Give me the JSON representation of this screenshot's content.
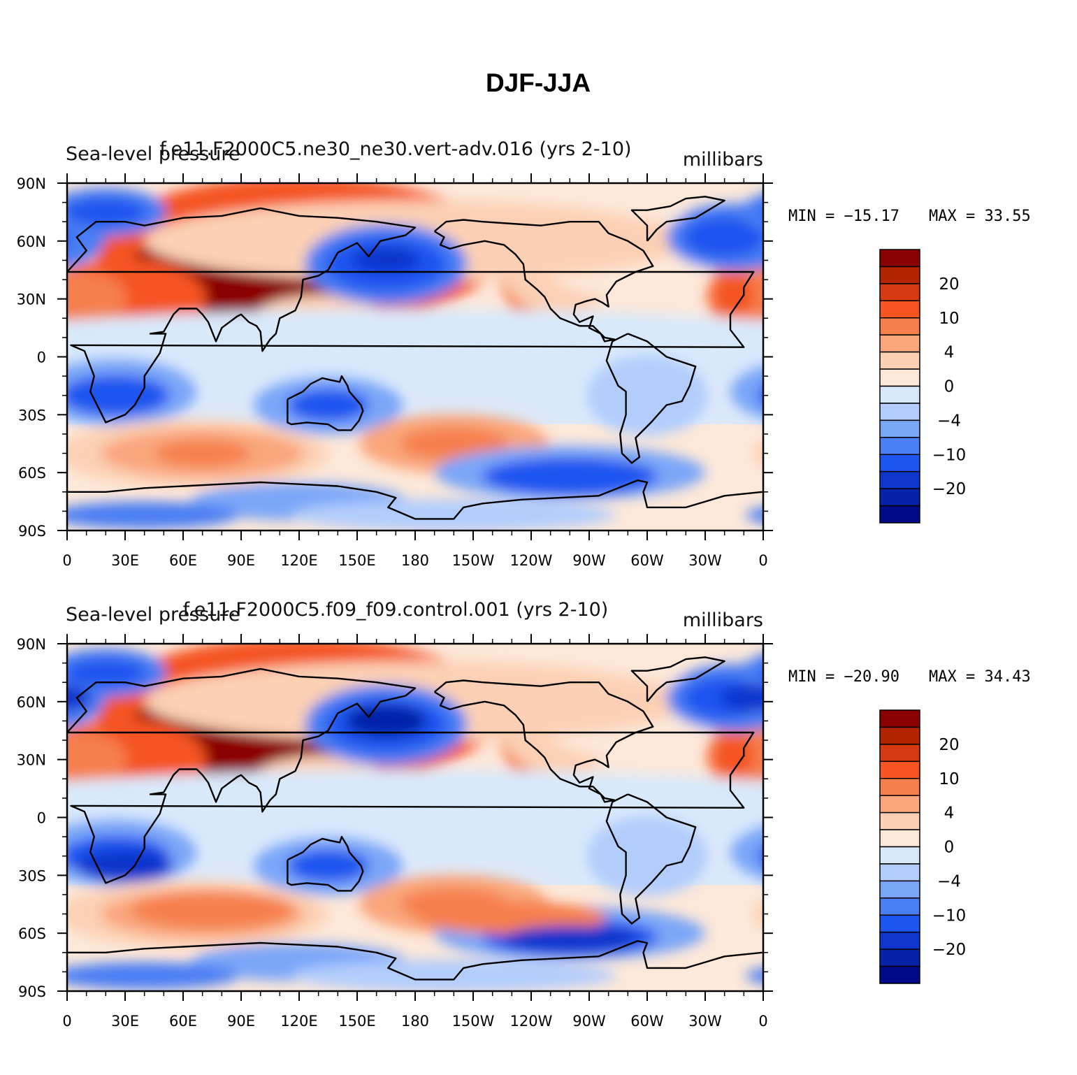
{
  "chart_data": [
    {
      "type": "heatmap",
      "title": "DJF-JJA",
      "left_label": "Sea-level pressure",
      "case_label": "f.e11.F2000C5.ne30_ne30.vert-adv.016 (yrs 2-10)",
      "units": "millibars",
      "min_text": "MIN = −15.17",
      "max_text": "MAX =   33.55",
      "xticks": [
        "0",
        "30E",
        "60E",
        "90E",
        "120E",
        "150E",
        "180",
        "150W",
        "120W",
        "90W",
        "60W",
        "30W",
        "0"
      ],
      "yticks": [
        "90N",
        "60N",
        "30N",
        "0",
        "30S",
        "60S",
        "90S"
      ],
      "xlim": [
        0,
        360
      ],
      "ylim": [
        -90,
        90
      ],
      "contour_levels": [
        -25,
        -20,
        -15,
        -10,
        -7,
        -4,
        -2,
        0,
        2,
        4,
        7,
        10,
        15,
        20,
        25
      ],
      "colorbar_labels": [
        "20",
        "10",
        "4",
        "0",
        "−4",
        "−10",
        "−20"
      ],
      "colors": [
        "#8b0000",
        "#b32400",
        "#d63a12",
        "#f45420",
        "#f57f4d",
        "#f9a67c",
        "#fcd0b4",
        "#fde8d9",
        "#d8e9fc",
        "#b2cdfc",
        "#7aa6f8",
        "#4a7ef4",
        "#1e55ef",
        "#0c36cc",
        "#0622a8",
        "#000a88"
      ]
    },
    {
      "type": "heatmap",
      "left_label": "Sea-level pressure",
      "case_label": "f.e11.F2000C5.f09_f09.control.001 (yrs 2-10)",
      "units": "millibars",
      "min_text": "MIN = −20.90",
      "max_text": "MAX =   34.43",
      "xticks": [
        "0",
        "30E",
        "60E",
        "90E",
        "120E",
        "150E",
        "180",
        "150W",
        "120W",
        "90W",
        "60W",
        "30W",
        "0"
      ],
      "yticks": [
        "90N",
        "60N",
        "30N",
        "0",
        "30S",
        "60S",
        "90S"
      ],
      "xlim": [
        0,
        360
      ],
      "ylim": [
        -90,
        90
      ],
      "contour_levels": [
        -25,
        -20,
        -15,
        -10,
        -7,
        -4,
        -2,
        0,
        2,
        4,
        7,
        10,
        15,
        20,
        25
      ],
      "colorbar_labels": [
        "20",
        "10",
        "4",
        "0",
        "−4",
        "−10",
        "−20"
      ],
      "colors": [
        "#8b0000",
        "#b32400",
        "#d63a12",
        "#f45420",
        "#f57f4d",
        "#f9a67c",
        "#fcd0b4",
        "#fde8d9",
        "#d8e9fc",
        "#b2cdfc",
        "#7aa6f8",
        "#4a7ef4",
        "#1e55ef",
        "#0c36cc",
        "#0622a8",
        "#000a88"
      ]
    }
  ]
}
